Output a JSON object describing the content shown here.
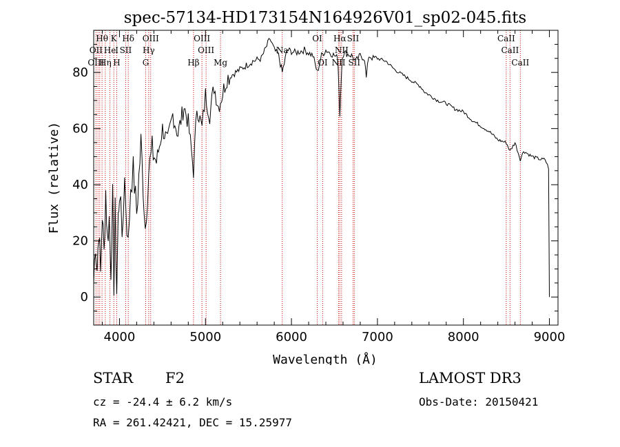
{
  "colors": {
    "line_marker": "#cc0000",
    "spectrum": "#000000",
    "axis": "#000000"
  },
  "chart_data": {
    "type": "line",
    "title": "spec-57134-HD173154N164926V01_sp02-045.fits",
    "xlabel": "Wavelength (Å)",
    "ylabel": "Flux (relative)",
    "xlim": [
      3700,
      9100
    ],
    "ylim": [
      -10,
      95
    ],
    "xticks": [
      4000,
      5000,
      6000,
      7000,
      8000,
      9000
    ],
    "yticks": [
      0,
      20,
      40,
      60,
      80
    ],
    "series": [
      {
        "name": "spectrum",
        "x": [
          3700,
          3720,
          3740,
          3760,
          3780,
          3800,
          3820,
          3840,
          3860,
          3880,
          3900,
          3920,
          3935,
          3950,
          3968,
          3985,
          4000,
          4030,
          4060,
          4101,
          4130,
          4160,
          4200,
          4250,
          4300,
          4340,
          4380,
          4430,
          4500,
          4560,
          4620,
          4680,
          4750,
          4800,
          4861,
          4900,
          4960,
          5000,
          5050,
          5100,
          5150,
          5175,
          5250,
          5350,
          5450,
          5550,
          5650,
          5750,
          5800,
          5850,
          5893,
          5950,
          6050,
          6150,
          6250,
          6300,
          6350,
          6400,
          6450,
          6500,
          6540,
          6563,
          6590,
          6620,
          6700,
          6750,
          6800,
          6850,
          6870,
          6900,
          6950,
          7000,
          7100,
          7200,
          7300,
          7400,
          7500,
          7550,
          7600,
          7700,
          7800,
          7900,
          8000,
          8100,
          8200,
          8300,
          8400,
          8498,
          8542,
          8600,
          8662,
          8700,
          8800,
          8900,
          8950,
          8990,
          9000
        ],
        "values": [
          5,
          20,
          10,
          25,
          8,
          30,
          15,
          38,
          20,
          28,
          10,
          35,
          5,
          30,
          2,
          28,
          38,
          22,
          42,
          18,
          40,
          45,
          30,
          55,
          25,
          45,
          52,
          48,
          60,
          55,
          65,
          58,
          68,
          62,
          45,
          68,
          60,
          72,
          65,
          75,
          68,
          70,
          78,
          80,
          82,
          84,
          85,
          92,
          88,
          86,
          80,
          88,
          87,
          88,
          86,
          80,
          86,
          88,
          87,
          86,
          85,
          65,
          86,
          87,
          86,
          84,
          86,
          85,
          78,
          86,
          85,
          85,
          84,
          81,
          79,
          77,
          75,
          73,
          72,
          70,
          69,
          67,
          66,
          63,
          61,
          59,
          56,
          55,
          52,
          55,
          49,
          52,
          50,
          49,
          49,
          46,
          0
        ]
      }
    ],
    "line_markers": {
      "label_rows": [
        [
          {
            "label": "Hθ",
            "wavelength": 3797
          },
          {
            "label": "K",
            "wavelength": 3934
          },
          {
            "label": "Hδ",
            "wavelength": 4102
          },
          {
            "label": "OIII",
            "wavelength": 4363
          },
          {
            "label": "OIII",
            "wavelength": 4959
          },
          {
            "label": "OI",
            "wavelength": 6300
          },
          {
            "label": "Hα",
            "wavelength": 6563
          },
          {
            "label": "SII",
            "wavelength": 6716
          },
          {
            "label": "CaII",
            "wavelength": 8498
          }
        ],
        [
          {
            "label": "OII",
            "wavelength": 3727
          },
          {
            "label": "He",
            "wavelength": 3889
          },
          {
            "label": "I",
            "wavelength": 3969
          },
          {
            "label": "SII",
            "wavelength": 4072
          },
          {
            "label": "Hγ",
            "wavelength": 4340
          },
          {
            "label": "OIII",
            "wavelength": 5007
          },
          {
            "label": "Na",
            "wavelength": 5893
          },
          {
            "label": "NII",
            "wavelength": 6583
          },
          {
            "label": "CaII",
            "wavelength": 8542
          }
        ],
        [
          {
            "label": "OIII",
            "wavelength": 3727
          },
          {
            "label": "Hη",
            "wavelength": 3835
          },
          {
            "label": "H",
            "wavelength": 3968
          },
          {
            "label": "G",
            "wavelength": 4305
          },
          {
            "label": "Hβ",
            "wavelength": 4861
          },
          {
            "label": "Mg",
            "wavelength": 5175
          },
          {
            "label": "OI",
            "wavelength": 6363
          },
          {
            "label": "NII",
            "wavelength": 6548
          },
          {
            "label": "SII",
            "wavelength": 6731
          },
          {
            "label": "CaII",
            "wavelength": 8662
          }
        ]
      ],
      "wavelengths": [
        3727,
        3750,
        3770,
        3797,
        3835,
        3889,
        3934,
        3968,
        4072,
        4102,
        4305,
        4340,
        4363,
        4861,
        4959,
        5007,
        5175,
        5893,
        6300,
        6363,
        6548,
        6563,
        6583,
        6716,
        6731,
        8498,
        8542,
        8662
      ]
    }
  },
  "info": {
    "object_class": "STAR",
    "subclass": "F2",
    "survey": "LAMOST DR3",
    "cz_text": "cz = -24.4 ± 6.2 km/s",
    "obs_date_text": "Obs-Date: 20150421",
    "radec_text": "RA = 261.42421, DEC =  15.25977"
  }
}
